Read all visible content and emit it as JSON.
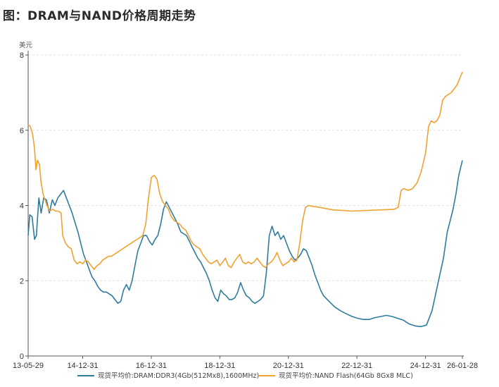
{
  "title": "图：DRAM与NAND价格周期走势",
  "chart_data": {
    "type": "line",
    "title": "图：DRAM与NAND价格周期走势",
    "ylabel": "美元",
    "ylim": [
      0,
      8
    ],
    "yticks": [
      0,
      2,
      4,
      6,
      8
    ],
    "xlim": [
      "2013-05-29",
      "2026-01-28"
    ],
    "xtick_labels": [
      "13-05-29",
      "14-12-31",
      "16-12-31",
      "18-12-31",
      "20-12-31",
      "22-12-31",
      "24-12-31",
      "26-01-28"
    ],
    "xtick_dates": [
      "2013-05-29",
      "2014-12-31",
      "2016-12-31",
      "2018-12-31",
      "2020-12-31",
      "2022-12-31",
      "2024-12-31",
      "2026-01-28"
    ],
    "grid": "horizontal dashed",
    "legend_position": "bottom",
    "series": [
      {
        "name": "现货平均价:DRAM:DDR3(4Gb(512Mx8),1600MHz)",
        "color": "#2e7b9e",
        "points": [
          [
            "2013-05-29",
            3.2
          ],
          [
            "2013-06-15",
            3.75
          ],
          [
            "2013-07-10",
            3.7
          ],
          [
            "2013-08-05",
            3.1
          ],
          [
            "2013-08-25",
            3.2
          ],
          [
            "2013-09-20",
            4.2
          ],
          [
            "2013-10-15",
            3.8
          ],
          [
            "2013-11-10",
            4.2
          ],
          [
            "2013-12-10",
            4.15
          ],
          [
            "2014-01-10",
            3.8
          ],
          [
            "2014-02-10",
            4.15
          ],
          [
            "2014-03-10",
            4.0
          ],
          [
            "2014-04-10",
            4.2
          ],
          [
            "2014-05-10",
            4.3
          ],
          [
            "2014-06-10",
            4.4
          ],
          [
            "2014-07-10",
            4.2
          ],
          [
            "2014-08-10",
            4.0
          ],
          [
            "2014-09-10",
            3.8
          ],
          [
            "2014-10-10",
            3.55
          ],
          [
            "2014-11-10",
            3.3
          ],
          [
            "2014-12-10",
            3.0
          ],
          [
            "2015-01-10",
            2.7
          ],
          [
            "2015-02-10",
            2.5
          ],
          [
            "2015-03-10",
            2.3
          ],
          [
            "2015-04-10",
            2.1
          ],
          [
            "2015-05-10",
            2.0
          ],
          [
            "2015-06-10",
            1.85
          ],
          [
            "2015-07-10",
            1.75
          ],
          [
            "2015-08-10",
            1.7
          ],
          [
            "2015-09-10",
            1.7
          ],
          [
            "2015-10-10",
            1.65
          ],
          [
            "2015-11-10",
            1.6
          ],
          [
            "2015-12-10",
            1.5
          ],
          [
            "2016-01-10",
            1.4
          ],
          [
            "2016-02-10",
            1.45
          ],
          [
            "2016-03-10",
            1.75
          ],
          [
            "2016-04-10",
            1.9
          ],
          [
            "2016-05-10",
            1.75
          ],
          [
            "2016-06-10",
            2.0
          ],
          [
            "2016-07-10",
            2.4
          ],
          [
            "2016-08-10",
            2.8
          ],
          [
            "2016-09-10",
            3.0
          ],
          [
            "2016-10-10",
            3.2
          ],
          [
            "2016-11-10",
            3.2
          ],
          [
            "2016-12-10",
            3.05
          ],
          [
            "2017-01-10",
            2.95
          ],
          [
            "2017-02-10",
            3.1
          ],
          [
            "2017-03-10",
            3.2
          ],
          [
            "2017-04-10",
            3.5
          ],
          [
            "2017-05-10",
            3.9
          ],
          [
            "2017-06-10",
            4.1
          ],
          [
            "2017-07-10",
            3.95
          ],
          [
            "2017-08-10",
            3.8
          ],
          [
            "2017-09-10",
            3.65
          ],
          [
            "2017-10-10",
            3.5
          ],
          [
            "2017-11-10",
            3.3
          ],
          [
            "2017-12-10",
            3.25
          ],
          [
            "2018-01-10",
            3.2
          ],
          [
            "2018-02-10",
            3.05
          ],
          [
            "2018-03-10",
            2.9
          ],
          [
            "2018-04-10",
            2.75
          ],
          [
            "2018-05-10",
            2.6
          ],
          [
            "2018-06-10",
            2.5
          ],
          [
            "2018-07-10",
            2.35
          ],
          [
            "2018-08-10",
            2.2
          ],
          [
            "2018-09-10",
            2.0
          ],
          [
            "2018-10-10",
            1.75
          ],
          [
            "2018-11-10",
            1.55
          ],
          [
            "2018-12-10",
            1.45
          ],
          [
            "2019-01-10",
            1.75
          ],
          [
            "2019-02-10",
            1.65
          ],
          [
            "2019-03-10",
            1.6
          ],
          [
            "2019-04-10",
            1.5
          ],
          [
            "2019-05-10",
            1.5
          ],
          [
            "2019-06-10",
            1.55
          ],
          [
            "2019-07-10",
            1.7
          ],
          [
            "2019-08-10",
            1.95
          ],
          [
            "2019-09-10",
            1.75
          ],
          [
            "2019-10-10",
            1.6
          ],
          [
            "2019-11-10",
            1.55
          ],
          [
            "2019-12-10",
            1.45
          ],
          [
            "2020-01-10",
            1.4
          ],
          [
            "2020-02-10",
            1.45
          ],
          [
            "2020-03-10",
            1.5
          ],
          [
            "2020-04-10",
            1.6
          ],
          [
            "2020-05-10",
            2.2
          ],
          [
            "2020-06-10",
            3.2
          ],
          [
            "2020-07-10",
            3.45
          ],
          [
            "2020-08-10",
            3.2
          ],
          [
            "2020-09-10",
            3.3
          ],
          [
            "2020-10-10",
            3.1
          ],
          [
            "2020-11-10",
            3.2
          ],
          [
            "2020-12-10",
            3.0
          ],
          [
            "2021-01-10",
            2.8
          ],
          [
            "2021-02-10",
            2.65
          ],
          [
            "2021-03-10",
            2.55
          ],
          [
            "2021-04-10",
            2.6
          ],
          [
            "2021-05-10",
            2.7
          ],
          [
            "2021-06-10",
            2.85
          ],
          [
            "2021-07-10",
            2.8
          ],
          [
            "2021-08-10",
            2.6
          ],
          [
            "2021-09-10",
            2.4
          ],
          [
            "2021-10-10",
            2.15
          ],
          [
            "2021-11-10",
            1.95
          ],
          [
            "2021-12-10",
            1.75
          ],
          [
            "2022-01-10",
            1.6
          ],
          [
            "2022-03-10",
            1.45
          ],
          [
            "2022-05-10",
            1.3
          ],
          [
            "2022-07-10",
            1.2
          ],
          [
            "2022-09-10",
            1.12
          ],
          [
            "2022-11-10",
            1.05
          ],
          [
            "2023-01-10",
            1.0
          ],
          [
            "2023-03-10",
            0.97
          ],
          [
            "2023-05-10",
            0.97
          ],
          [
            "2023-07-10",
            1.02
          ],
          [
            "2023-09-10",
            1.05
          ],
          [
            "2023-11-10",
            1.08
          ],
          [
            "2024-01-10",
            1.05
          ],
          [
            "2024-03-10",
            1.0
          ],
          [
            "2024-05-10",
            0.95
          ],
          [
            "2024-07-10",
            0.85
          ],
          [
            "2024-09-10",
            0.8
          ],
          [
            "2024-11-10",
            0.78
          ],
          [
            "2025-01-10",
            0.82
          ],
          [
            "2025-03-10",
            1.2
          ],
          [
            "2025-05-10",
            1.9
          ],
          [
            "2025-07-10",
            2.6
          ],
          [
            "2025-08-20",
            3.3
          ],
          [
            "2025-09-20",
            3.6
          ],
          [
            "2025-10-20",
            3.9
          ],
          [
            "2025-11-20",
            4.3
          ],
          [
            "2025-12-20",
            4.8
          ],
          [
            "2026-01-28",
            5.2
          ]
        ]
      },
      {
        "name": "现货平均价:NAND Flash(64Gb 8Gx8 MLC)",
        "color": "#f0a232",
        "points": [
          [
            "2013-05-29",
            6.15
          ],
          [
            "2013-06-20",
            6.1
          ],
          [
            "2013-07-15",
            5.9
          ],
          [
            "2013-08-05",
            5.5
          ],
          [
            "2013-08-20",
            4.95
          ],
          [
            "2013-09-05",
            5.2
          ],
          [
            "2013-09-25",
            5.1
          ],
          [
            "2013-10-15",
            4.6
          ],
          [
            "2013-11-05",
            4.3
          ],
          [
            "2013-11-25",
            4.15
          ],
          [
            "2013-12-15",
            4.0
          ],
          [
            "2014-01-15",
            3.85
          ],
          [
            "2014-02-15",
            3.9
          ],
          [
            "2014-03-15",
            3.85
          ],
          [
            "2014-04-15",
            3.85
          ],
          [
            "2014-05-15",
            3.8
          ],
          [
            "2014-06-01",
            3.2
          ],
          [
            "2014-07-01",
            3.0
          ],
          [
            "2014-08-01",
            2.9
          ],
          [
            "2014-09-01",
            2.85
          ],
          [
            "2014-10-01",
            2.55
          ],
          [
            "2014-11-01",
            2.45
          ],
          [
            "2014-12-01",
            2.5
          ],
          [
            "2015-01-01",
            2.45
          ],
          [
            "2015-02-01",
            2.55
          ],
          [
            "2015-03-01",
            2.5
          ],
          [
            "2015-04-01",
            2.4
          ],
          [
            "2015-05-01",
            2.3
          ],
          [
            "2015-06-01",
            2.4
          ],
          [
            "2015-07-01",
            2.45
          ],
          [
            "2015-08-01",
            2.55
          ],
          [
            "2015-09-01",
            2.6
          ],
          [
            "2015-10-01",
            2.65
          ],
          [
            "2015-11-01",
            2.65
          ],
          [
            "2015-12-01",
            2.7
          ],
          [
            "2016-01-01",
            2.75
          ],
          [
            "2016-02-01",
            2.8
          ],
          [
            "2016-03-01",
            2.85
          ],
          [
            "2016-04-01",
            2.9
          ],
          [
            "2016-05-01",
            2.95
          ],
          [
            "2016-06-01",
            3.0
          ],
          [
            "2016-07-01",
            3.05
          ],
          [
            "2016-08-01",
            3.1
          ],
          [
            "2016-09-01",
            3.15
          ],
          [
            "2016-10-01",
            3.2
          ],
          [
            "2016-11-01",
            3.5
          ],
          [
            "2016-12-01",
            4.2
          ],
          [
            "2017-01-01",
            4.75
          ],
          [
            "2017-02-01",
            4.8
          ],
          [
            "2017-03-01",
            4.7
          ],
          [
            "2017-04-01",
            4.3
          ],
          [
            "2017-05-01",
            4.1
          ],
          [
            "2017-06-01",
            4.0
          ],
          [
            "2017-07-01",
            3.9
          ],
          [
            "2017-08-01",
            3.7
          ],
          [
            "2017-09-01",
            3.6
          ],
          [
            "2017-10-01",
            3.55
          ],
          [
            "2017-11-01",
            3.5
          ],
          [
            "2017-12-01",
            3.4
          ],
          [
            "2018-01-01",
            3.35
          ],
          [
            "2018-02-01",
            3.2
          ],
          [
            "2018-03-01",
            3.05
          ],
          [
            "2018-04-01",
            2.95
          ],
          [
            "2018-05-01",
            2.9
          ],
          [
            "2018-06-01",
            2.85
          ],
          [
            "2018-07-01",
            2.7
          ],
          [
            "2018-08-01",
            2.6
          ],
          [
            "2018-09-01",
            2.5
          ],
          [
            "2018-10-01",
            2.45
          ],
          [
            "2018-11-01",
            2.5
          ],
          [
            "2018-12-01",
            2.55
          ],
          [
            "2019-01-01",
            2.4
          ],
          [
            "2019-02-01",
            2.5
          ],
          [
            "2019-03-01",
            2.6
          ],
          [
            "2019-04-01",
            2.4
          ],
          [
            "2019-05-01",
            2.35
          ],
          [
            "2019-06-01",
            2.5
          ],
          [
            "2019-07-01",
            2.6
          ],
          [
            "2019-08-01",
            2.7
          ],
          [
            "2019-09-01",
            2.5
          ],
          [
            "2019-10-01",
            2.45
          ],
          [
            "2019-11-01",
            2.5
          ],
          [
            "2019-12-01",
            2.45
          ],
          [
            "2020-01-01",
            2.5
          ],
          [
            "2020-02-01",
            2.6
          ],
          [
            "2020-03-01",
            2.5
          ],
          [
            "2020-04-01",
            2.4
          ],
          [
            "2020-05-01",
            2.35
          ],
          [
            "2020-06-01",
            2.45
          ],
          [
            "2020-07-01",
            2.5
          ],
          [
            "2020-08-01",
            2.6
          ],
          [
            "2020-09-01",
            2.75
          ],
          [
            "2020-10-01",
            2.55
          ],
          [
            "2020-11-01",
            2.4
          ],
          [
            "2020-12-01",
            2.45
          ],
          [
            "2021-01-01",
            2.5
          ],
          [
            "2021-02-01",
            2.6
          ],
          [
            "2021-03-01",
            2.5
          ],
          [
            "2021-04-01",
            2.55
          ],
          [
            "2021-05-01",
            3.0
          ],
          [
            "2021-06-01",
            3.6
          ],
          [
            "2021-07-01",
            3.95
          ],
          [
            "2021-08-01",
            4.0
          ],
          [
            "2021-10-01",
            3.97
          ],
          [
            "2021-12-01",
            3.95
          ],
          [
            "2022-02-01",
            3.92
          ],
          [
            "2022-05-01",
            3.88
          ],
          [
            "2022-08-01",
            3.87
          ],
          [
            "2022-11-01",
            3.85
          ],
          [
            "2023-02-01",
            3.86
          ],
          [
            "2023-05-01",
            3.87
          ],
          [
            "2023-08-01",
            3.88
          ],
          [
            "2023-11-01",
            3.89
          ],
          [
            "2024-02-01",
            3.9
          ],
          [
            "2024-03-15",
            3.95
          ],
          [
            "2024-04-15",
            4.4
          ],
          [
            "2024-05-15",
            4.45
          ],
          [
            "2024-07-01",
            4.4
          ],
          [
            "2024-08-15",
            4.45
          ],
          [
            "2024-10-01",
            4.6
          ],
          [
            "2024-11-15",
            4.9
          ],
          [
            "2025-01-01",
            5.4
          ],
          [
            "2025-02-01",
            6.1
          ],
          [
            "2025-03-01",
            6.25
          ],
          [
            "2025-04-01",
            6.2
          ],
          [
            "2025-05-01",
            6.25
          ],
          [
            "2025-06-01",
            6.4
          ],
          [
            "2025-07-01",
            6.8
          ],
          [
            "2025-08-01",
            6.9
          ],
          [
            "2025-09-01",
            6.95
          ],
          [
            "2025-10-01",
            7.0
          ],
          [
            "2025-11-01",
            7.1
          ],
          [
            "2025-12-01",
            7.2
          ],
          [
            "2026-01-28",
            7.55
          ]
        ]
      }
    ]
  }
}
